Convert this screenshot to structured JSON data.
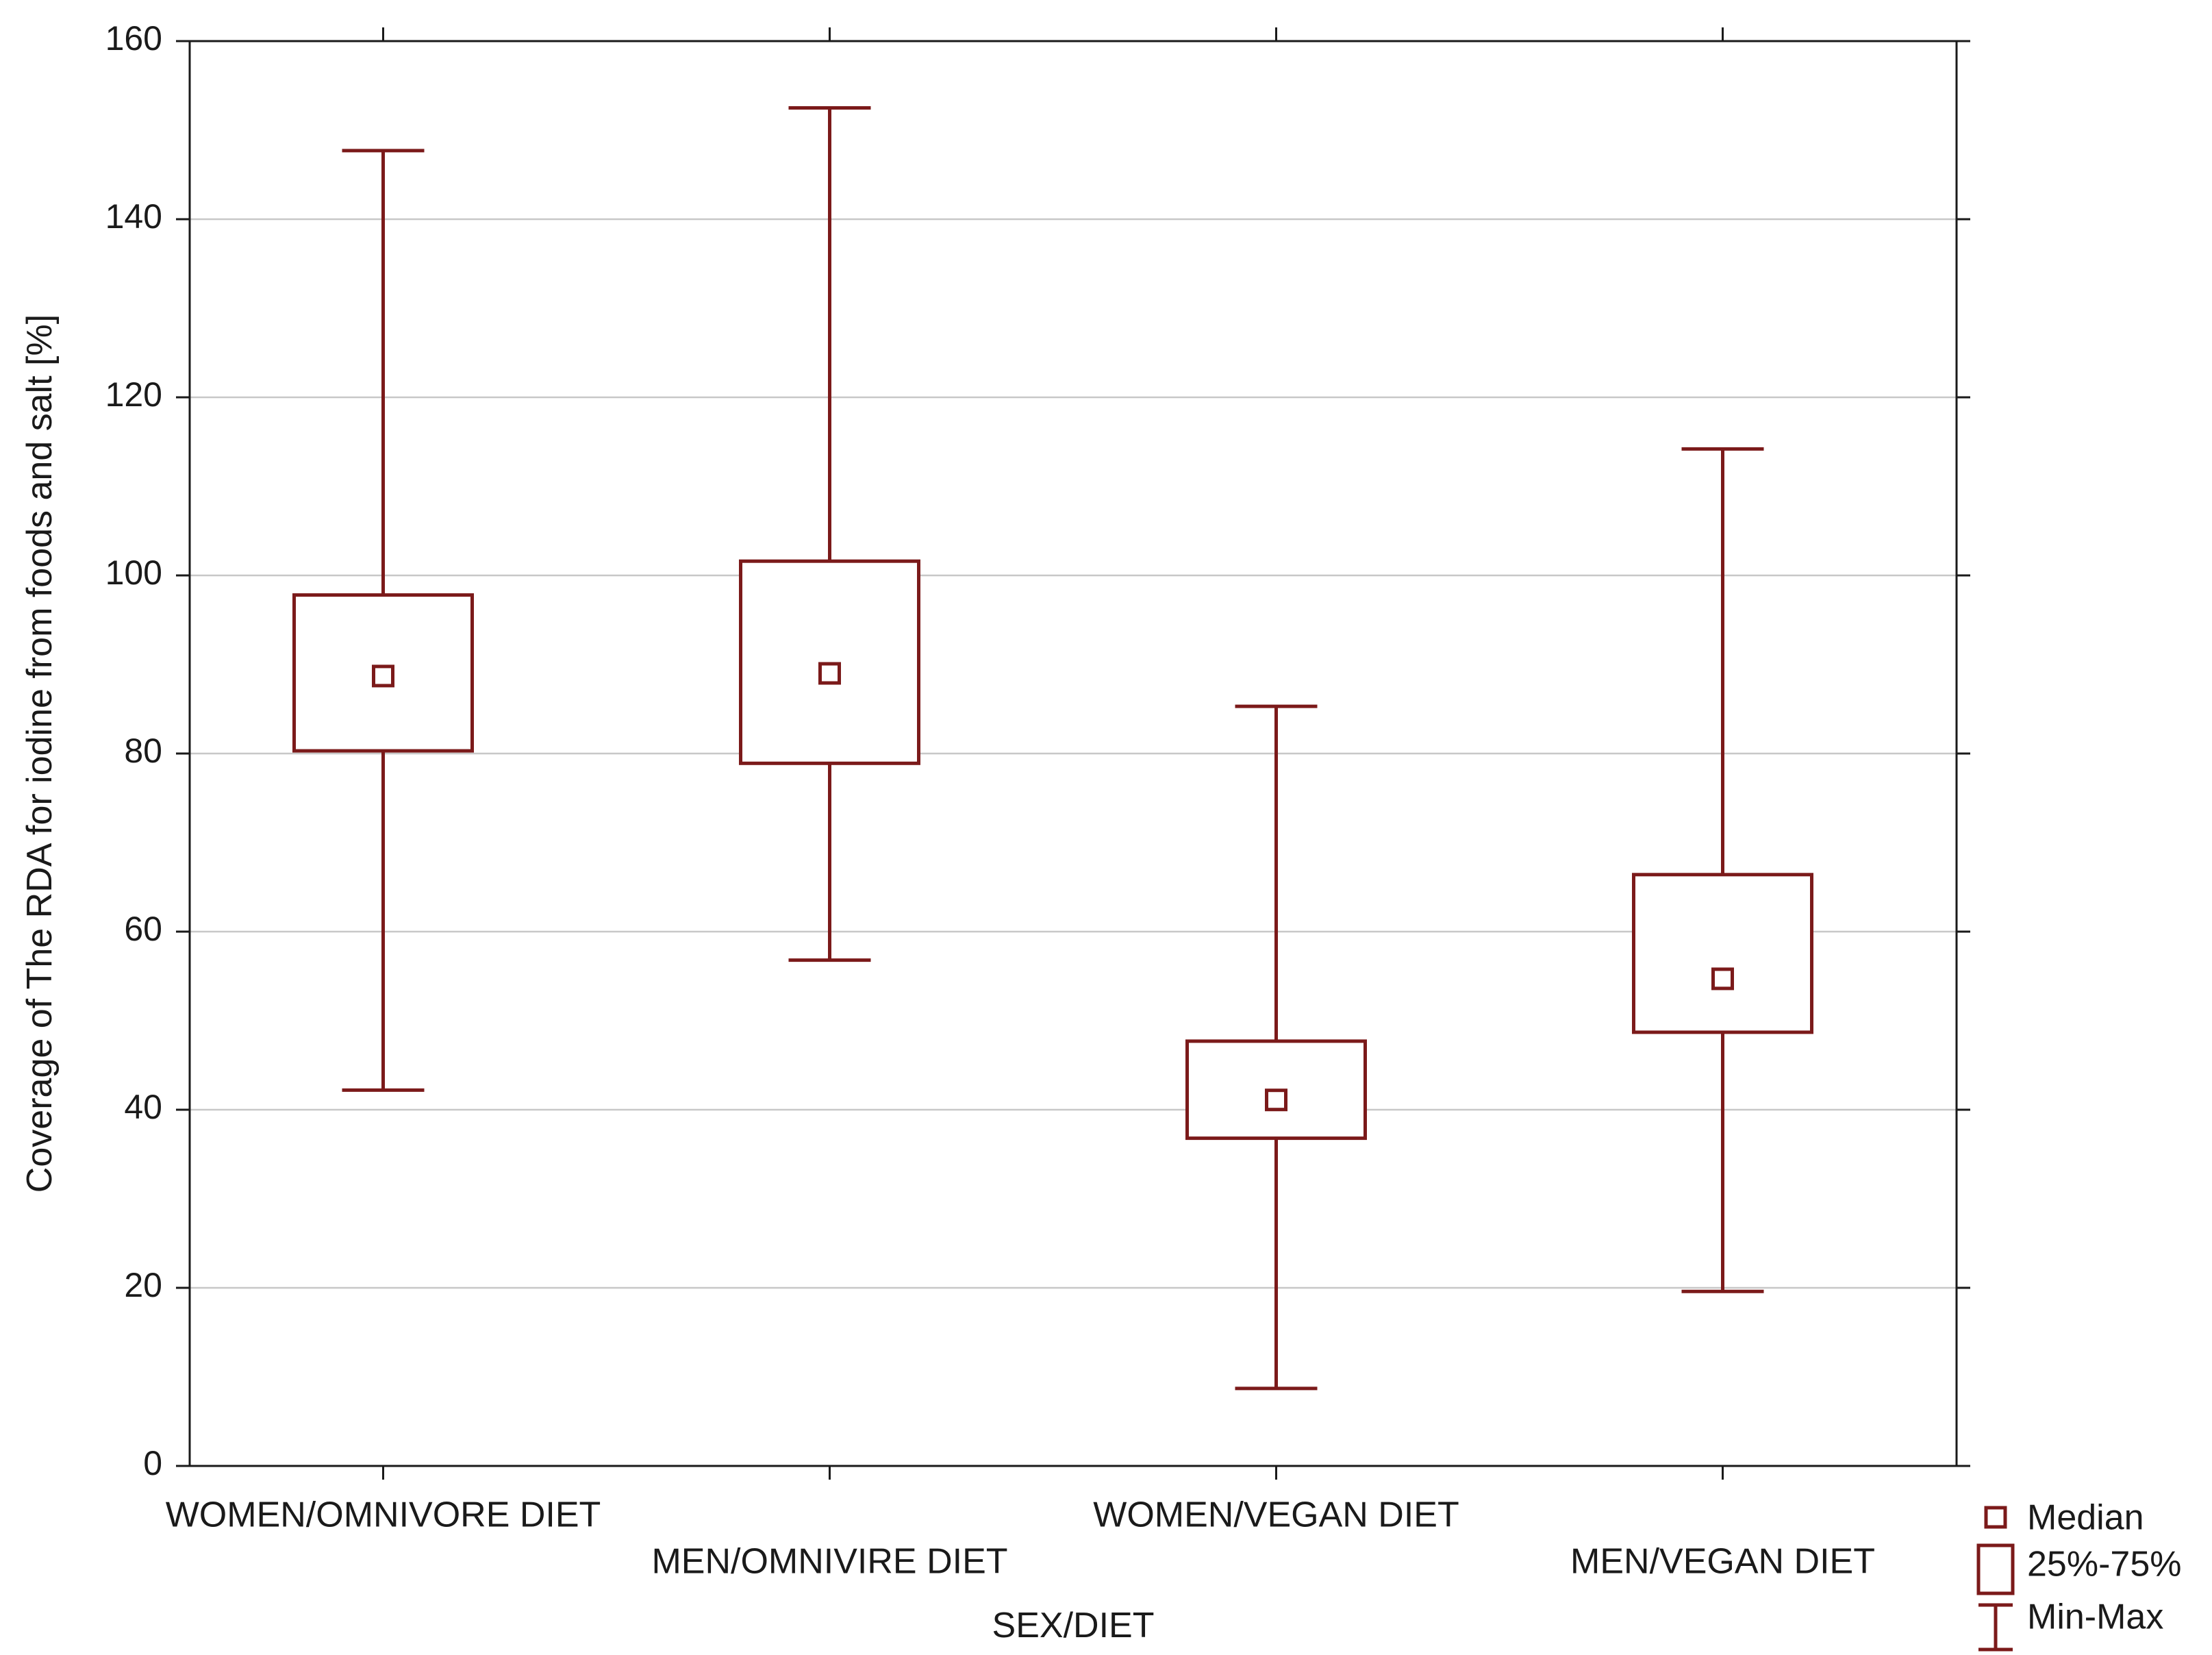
{
  "chart_data": {
    "type": "boxplot",
    "title": "",
    "xlabel": "SEX/DIET",
    "ylabel": "Coverage of The RDA for iodine from foods and salt [%]",
    "ylim": [
      0,
      160
    ],
    "yticks": [
      0,
      20,
      40,
      60,
      80,
      100,
      120,
      140,
      160
    ],
    "grid": true,
    "legend_position": "bottom-right",
    "colors": {
      "mark": "#7b1a1a",
      "grid": "#c8c8c8",
      "frame": "#1a1a1a"
    },
    "categories": [
      "WOMEN/OMNIVORE DIET",
      "MEN/OMNIVIRE DIET",
      "WOMEN/VEGAN DIET",
      "MEN/VEGAN DIET"
    ],
    "series": [
      {
        "category": "WOMEN/OMNIVORE DIET",
        "min": 42.2,
        "q1": 80.3,
        "median": 88.7,
        "q3": 97.8,
        "max": 147.7
      },
      {
        "category": "MEN/OMNIVIRE DIET",
        "min": 56.8,
        "q1": 78.9,
        "median": 89.0,
        "q3": 101.6,
        "max": 152.5
      },
      {
        "category": "WOMEN/VEGAN DIET",
        "min": 8.7,
        "q1": 36.8,
        "median": 41.1,
        "q3": 47.7,
        "max": 85.3
      },
      {
        "category": "MEN/VEGAN DIET",
        "min": 19.6,
        "q1": 48.7,
        "median": 54.7,
        "q3": 66.4,
        "max": 114.2
      }
    ],
    "legend": [
      {
        "key": "median",
        "label": "Median"
      },
      {
        "key": "box",
        "label": "25%-75%"
      },
      {
        "key": "whisker",
        "label": "Min-Max"
      }
    ]
  }
}
